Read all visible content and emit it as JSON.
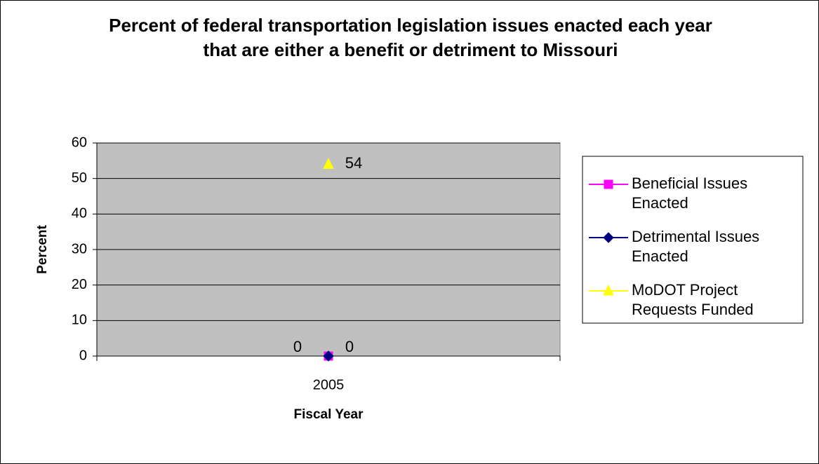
{
  "chart_data": {
    "type": "line",
    "title": "Percent of federal transportation legislation issues enacted each year that are either a benefit or detriment to Missouri",
    "x_label": "Fiscal Year",
    "y_label": "Percent",
    "categories": [
      "2005"
    ],
    "series": [
      {
        "name": "Beneficial Issues Enacted",
        "color": "#ff00ff",
        "marker": "square",
        "values": [
          0
        ]
      },
      {
        "name": "Detrimental Issues Enacted",
        "color": "#000080",
        "marker": "diamond",
        "values": [
          0
        ]
      },
      {
        "name": "MoDOT Project Requests Funded",
        "color": "#ffff00",
        "marker": "triangle",
        "values": [
          54
        ]
      }
    ],
    "ylim": [
      0,
      60
    ],
    "yticks": [
      0,
      10,
      20,
      30,
      40,
      50,
      60
    ],
    "grid": true,
    "legend": "right"
  }
}
